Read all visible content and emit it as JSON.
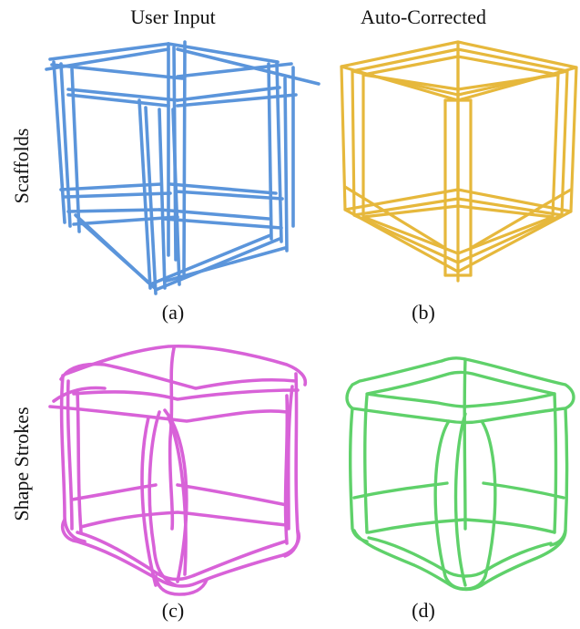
{
  "columns": {
    "left_title": "User Input",
    "right_title": "Auto-Corrected"
  },
  "rows": {
    "top_label": "Scaffolds",
    "bottom_label": "Shape Strokes"
  },
  "panels": {
    "a": {
      "caption": "(a)",
      "color": "#5b95db"
    },
    "b": {
      "caption": "(b)",
      "color": "#e6b83c"
    },
    "c": {
      "caption": "(c)",
      "color": "#d862d8"
    },
    "d": {
      "caption": "(d)",
      "color": "#5fd16a"
    }
  }
}
